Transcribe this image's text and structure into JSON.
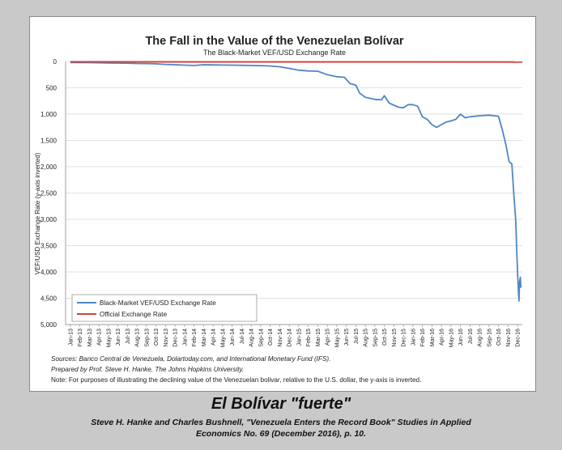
{
  "chart_data": {
    "type": "line",
    "title": "The Fall in the Value of the Venezuelan Bolívar",
    "subtitle": "The Black-Market VEF/USD Exchange Rate",
    "ylabel": "VEF/USD Exchange Rate (y-axis inverted)",
    "xlabel": "",
    "y_inverted": true,
    "ylim": [
      0,
      5000
    ],
    "yticks": [
      "0",
      "500",
      "1,000",
      "1,500",
      "2,000",
      "2,500",
      "3,000",
      "3,500",
      "4,000",
      "4,500",
      "5,000"
    ],
    "categories": [
      "Jan-13",
      "Feb-13",
      "Mar-13",
      "Apr-13",
      "May-13",
      "Jun-13",
      "Jul-13",
      "Aug-13",
      "Sep-13",
      "Oct-13",
      "Nov-13",
      "Dec-13",
      "Jan-14",
      "Feb-14",
      "Mar-14",
      "Apr-14",
      "May-14",
      "Jun-14",
      "Jul-14",
      "Aug-14",
      "Sep-14",
      "Oct-14",
      "Nov-14",
      "Dec-14",
      "Jan-15",
      "Feb-15",
      "Mar-15",
      "Apr-15",
      "May-15",
      "Jun-15",
      "Jul-15",
      "Aug-15",
      "Sep-15",
      "Oct-15",
      "Nov-15",
      "Dec-15",
      "Jan-16",
      "Feb-16",
      "Mar-16",
      "Apr-16",
      "May-16",
      "Jun-16",
      "Jul-16",
      "Aug-16",
      "Sep-16",
      "Oct-16",
      "Nov-16",
      "Dec-16"
    ],
    "grid": true,
    "legend_position": "bottom-left",
    "series": [
      {
        "name": "Black-Market VEF/USD Exchange Rate",
        "color": "#4f86c6",
        "points": [
          [
            0,
            18
          ],
          [
            1,
            20
          ],
          [
            2,
            22
          ],
          [
            3,
            25
          ],
          [
            4,
            28
          ],
          [
            5,
            30
          ],
          [
            6,
            33
          ],
          [
            7,
            38
          ],
          [
            8,
            40
          ],
          [
            9,
            45
          ],
          [
            10,
            55
          ],
          [
            11,
            62
          ],
          [
            12,
            70
          ],
          [
            13,
            75
          ],
          [
            14,
            62
          ],
          [
            15,
            65
          ],
          [
            16,
            68
          ],
          [
            17,
            70
          ],
          [
            18,
            72
          ],
          [
            19,
            75
          ],
          [
            20,
            80
          ],
          [
            21,
            85
          ],
          [
            22,
            100
          ],
          [
            23,
            130
          ],
          [
            24,
            165
          ],
          [
            25,
            180
          ],
          [
            26,
            185
          ],
          [
            27,
            250
          ],
          [
            28,
            290
          ],
          [
            28.8,
            300
          ],
          [
            29.4,
            420
          ],
          [
            30,
            450
          ],
          [
            30.4,
            600
          ],
          [
            31,
            680
          ],
          [
            32,
            720
          ],
          [
            32.7,
            730
          ],
          [
            33,
            650
          ],
          [
            33.5,
            790
          ],
          [
            34,
            830
          ],
          [
            34.5,
            870
          ],
          [
            35,
            880
          ],
          [
            35.5,
            820
          ],
          [
            36,
            820
          ],
          [
            36.5,
            850
          ],
          [
            37,
            1050
          ],
          [
            37.5,
            1100
          ],
          [
            38,
            1200
          ],
          [
            38.5,
            1250
          ],
          [
            39,
            1200
          ],
          [
            39.5,
            1150
          ],
          [
            40,
            1130
          ],
          [
            40.5,
            1100
          ],
          [
            41,
            1000
          ],
          [
            41.5,
            1070
          ],
          [
            42,
            1050
          ],
          [
            43,
            1030
          ],
          [
            44,
            1020
          ],
          [
            45,
            1040
          ],
          [
            45.4,
            1300
          ],
          [
            45.8,
            1600
          ],
          [
            46.1,
            1900
          ],
          [
            46.4,
            1950
          ],
          [
            46.6,
            2500
          ],
          [
            46.8,
            3000
          ],
          [
            46.9,
            3500
          ],
          [
            47.0,
            4000
          ],
          [
            47.1,
            4400
          ],
          [
            47.15,
            4550
          ],
          [
            47.2,
            4200
          ],
          [
            47.3,
            4100
          ],
          [
            47.35,
            4300
          ]
        ]
      },
      {
        "name": "Official Exchange Rate",
        "color": "#d0443a",
        "points": [
          [
            0,
            6.3
          ],
          [
            47.5,
            10
          ]
        ]
      }
    ]
  },
  "notes": {
    "sources": "Sources: Banco Central de Venezuela, Dolartoday.com, and International Monetary Fund (IFS).",
    "prepared": "Prepared by Prof. Steve H. Hanke, The Johns Hopkins University.",
    "note": "Note: For purposes of illustrating the declining value of the Venezuelan bolivar, relative to the U.S. dollar, the y-axis is inverted."
  },
  "caption": {
    "title": "El Bolívar \"fuerte\"",
    "citation_line1": "Steve H. Hanke and Charles Bushnell, \"Venezuela Enters the Record Book\" Studies in Applied",
    "citation_line2": "Economics No. 69 (December 2016), p. 10."
  }
}
